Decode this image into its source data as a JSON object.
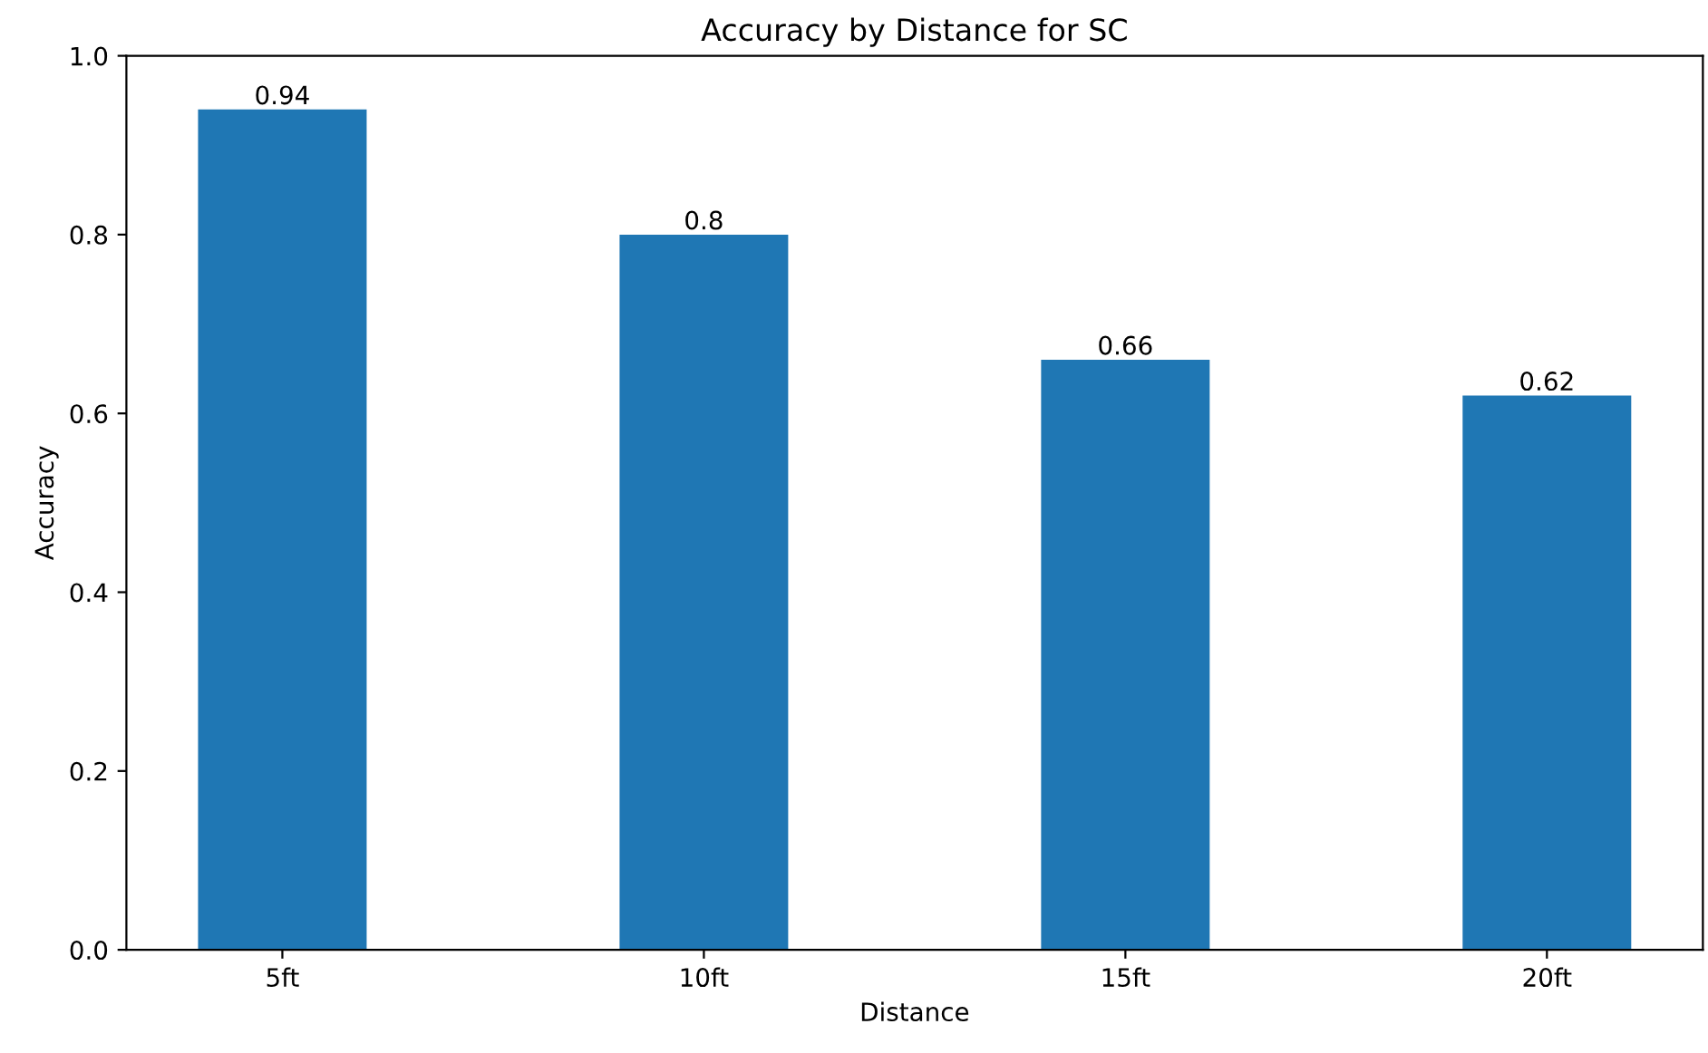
{
  "chart_data": {
    "type": "bar",
    "title": "Accuracy by Distance for SC",
    "xlabel": "Distance",
    "ylabel": "Accuracy",
    "categories": [
      "5ft",
      "10ft",
      "15ft",
      "20ft"
    ],
    "values": [
      0.94,
      0.8,
      0.66,
      0.62
    ],
    "color": "#1f77b4",
    "ylim": [
      0,
      1
    ],
    "yticks": [
      {
        "value": 0,
        "label": "0.0"
      },
      {
        "value": 0.2,
        "label": "0.2"
      },
      {
        "value": 0.4,
        "label": "0.4"
      },
      {
        "value": 0.6,
        "label": "0.6"
      },
      {
        "value": 0.8,
        "label": "0.8"
      },
      {
        "value": 1,
        "label": "1.0"
      }
    ],
    "data_labels": true,
    "grid": false,
    "legend": false
  }
}
